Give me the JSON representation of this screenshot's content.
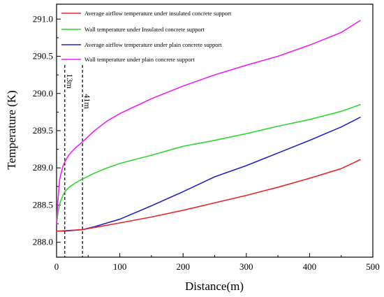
{
  "chart_data": {
    "type": "line",
    "xlabel": "Distance(m)",
    "ylabel": "Temperature (K)",
    "xlim": [
      0,
      500
    ],
    "ylim": [
      287.8,
      291.2
    ],
    "xticks": [
      0,
      100,
      200,
      300,
      400,
      500
    ],
    "yticks": [
      288.0,
      288.5,
      289.0,
      289.5,
      290.0,
      290.5,
      291.0
    ],
    "ytick_labels": [
      "288.0",
      "288.5",
      "289.0",
      "289.5",
      "290.0",
      "290.5",
      "291.0"
    ],
    "grid": false,
    "legend_position": "top-left",
    "annotations": [
      {
        "x": 13,
        "label": "13m",
        "style": "dashed-vertical"
      },
      {
        "x": 41,
        "label": "41m",
        "style": "dashed-vertical"
      }
    ],
    "series": [
      {
        "name": "Average airflow temperature under insulated concrete support",
        "color": "#e8262a",
        "x": [
          0,
          41,
          60,
          100,
          150,
          200,
          250,
          300,
          350,
          400,
          450,
          480
        ],
        "y": [
          288.15,
          288.17,
          288.2,
          288.26,
          288.34,
          288.43,
          288.53,
          288.63,
          288.74,
          288.86,
          288.99,
          289.11
        ]
      },
      {
        "name": "Wall temperature under Insulated concrete support",
        "color": "#2fd62f",
        "x": [
          0,
          2,
          5,
          10,
          13,
          20,
          30,
          41,
          60,
          80,
          100,
          150,
          200,
          250,
          300,
          350,
          400,
          450,
          480
        ],
        "y": [
          288.25,
          288.38,
          288.52,
          288.63,
          288.68,
          288.74,
          288.8,
          288.85,
          288.93,
          289.0,
          289.06,
          289.17,
          289.29,
          289.37,
          289.46,
          289.56,
          289.65,
          289.76,
          289.85
        ]
      },
      {
        "name": "Average airflow temperature under plain concrete support",
        "color": "#2222c8",
        "x": [
          0,
          13,
          41,
          60,
          80,
          100,
          150,
          200,
          250,
          300,
          350,
          400,
          450,
          480
        ],
        "y": [
          288.15,
          288.15,
          288.17,
          288.21,
          288.26,
          288.31,
          288.49,
          288.68,
          288.88,
          289.03,
          289.2,
          289.37,
          289.55,
          289.68
        ]
      },
      {
        "name": "Wall temperature under plain concrete support",
        "color": "#ee22ee",
        "x": [
          0,
          2,
          5,
          10,
          13,
          20,
          30,
          41,
          60,
          80,
          100,
          150,
          200,
          250,
          300,
          350,
          400,
          450,
          480
        ],
        "y": [
          288.25,
          288.55,
          288.85,
          289.02,
          289.08,
          289.18,
          289.27,
          289.35,
          289.5,
          289.63,
          289.73,
          289.93,
          290.1,
          290.25,
          290.38,
          290.5,
          290.65,
          290.82,
          290.98
        ]
      }
    ]
  }
}
